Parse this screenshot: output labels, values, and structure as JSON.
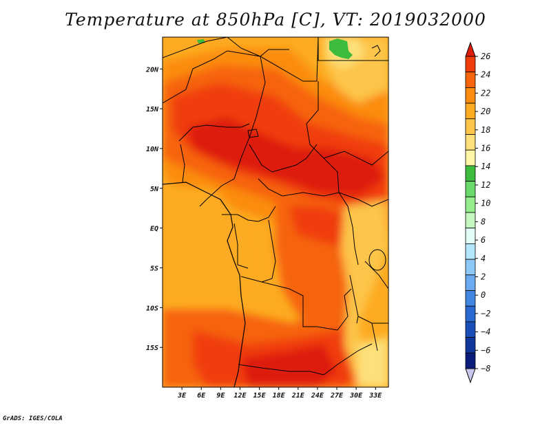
{
  "title": "Temperature at 850hPa [C], VT: 2019032000",
  "credit": "GrADS: IGES/COLA",
  "map": {
    "lon_range": [
      0,
      35
    ],
    "lat_range": [
      -20,
      24
    ],
    "x_ticks": [
      {
        "value": 3,
        "label": "3E"
      },
      {
        "value": 6,
        "label": "6E"
      },
      {
        "value": 9,
        "label": "9E"
      },
      {
        "value": 12,
        "label": "12E"
      },
      {
        "value": 15,
        "label": "15E"
      },
      {
        "value": 18,
        "label": "18E"
      },
      {
        "value": 21,
        "label": "21E"
      },
      {
        "value": 24,
        "label": "24E"
      },
      {
        "value": 27,
        "label": "27E"
      },
      {
        "value": 30,
        "label": "30E"
      },
      {
        "value": 33,
        "label": "33E"
      }
    ],
    "y_ticks": [
      {
        "value": 20,
        "label": "20N"
      },
      {
        "value": 15,
        "label": "15N"
      },
      {
        "value": 10,
        "label": "10N"
      },
      {
        "value": 5,
        "label": "5N"
      },
      {
        "value": 0,
        "label": "EQ"
      },
      {
        "value": -5,
        "label": "5S"
      },
      {
        "value": -10,
        "label": "10S"
      },
      {
        "value": -15,
        "label": "15S"
      }
    ]
  },
  "colorbar": {
    "labels": [
      "26",
      "24",
      "22",
      "20",
      "18",
      "16",
      "14",
      "12",
      "10",
      "8",
      "6",
      "4",
      "2",
      "0",
      "−2",
      "−4",
      "−6",
      "−8"
    ],
    "colors": [
      "#dd1c0b",
      "#f03c0a",
      "#f6640b",
      "#fb8c0f",
      "#fdab22",
      "#fdc54a",
      "#fde07a",
      "#fff6a7",
      "#3cbb3c",
      "#6ad96a",
      "#96ed8e",
      "#c3f7be",
      "#e2fbf7",
      "#b4e6fb",
      "#8ec8f6",
      "#6aaaf0",
      "#4188e4",
      "#2a68d2",
      "#1a4fb8",
      "#10379c",
      "#0a1d7a",
      "#c7c7ee"
    ]
  }
}
